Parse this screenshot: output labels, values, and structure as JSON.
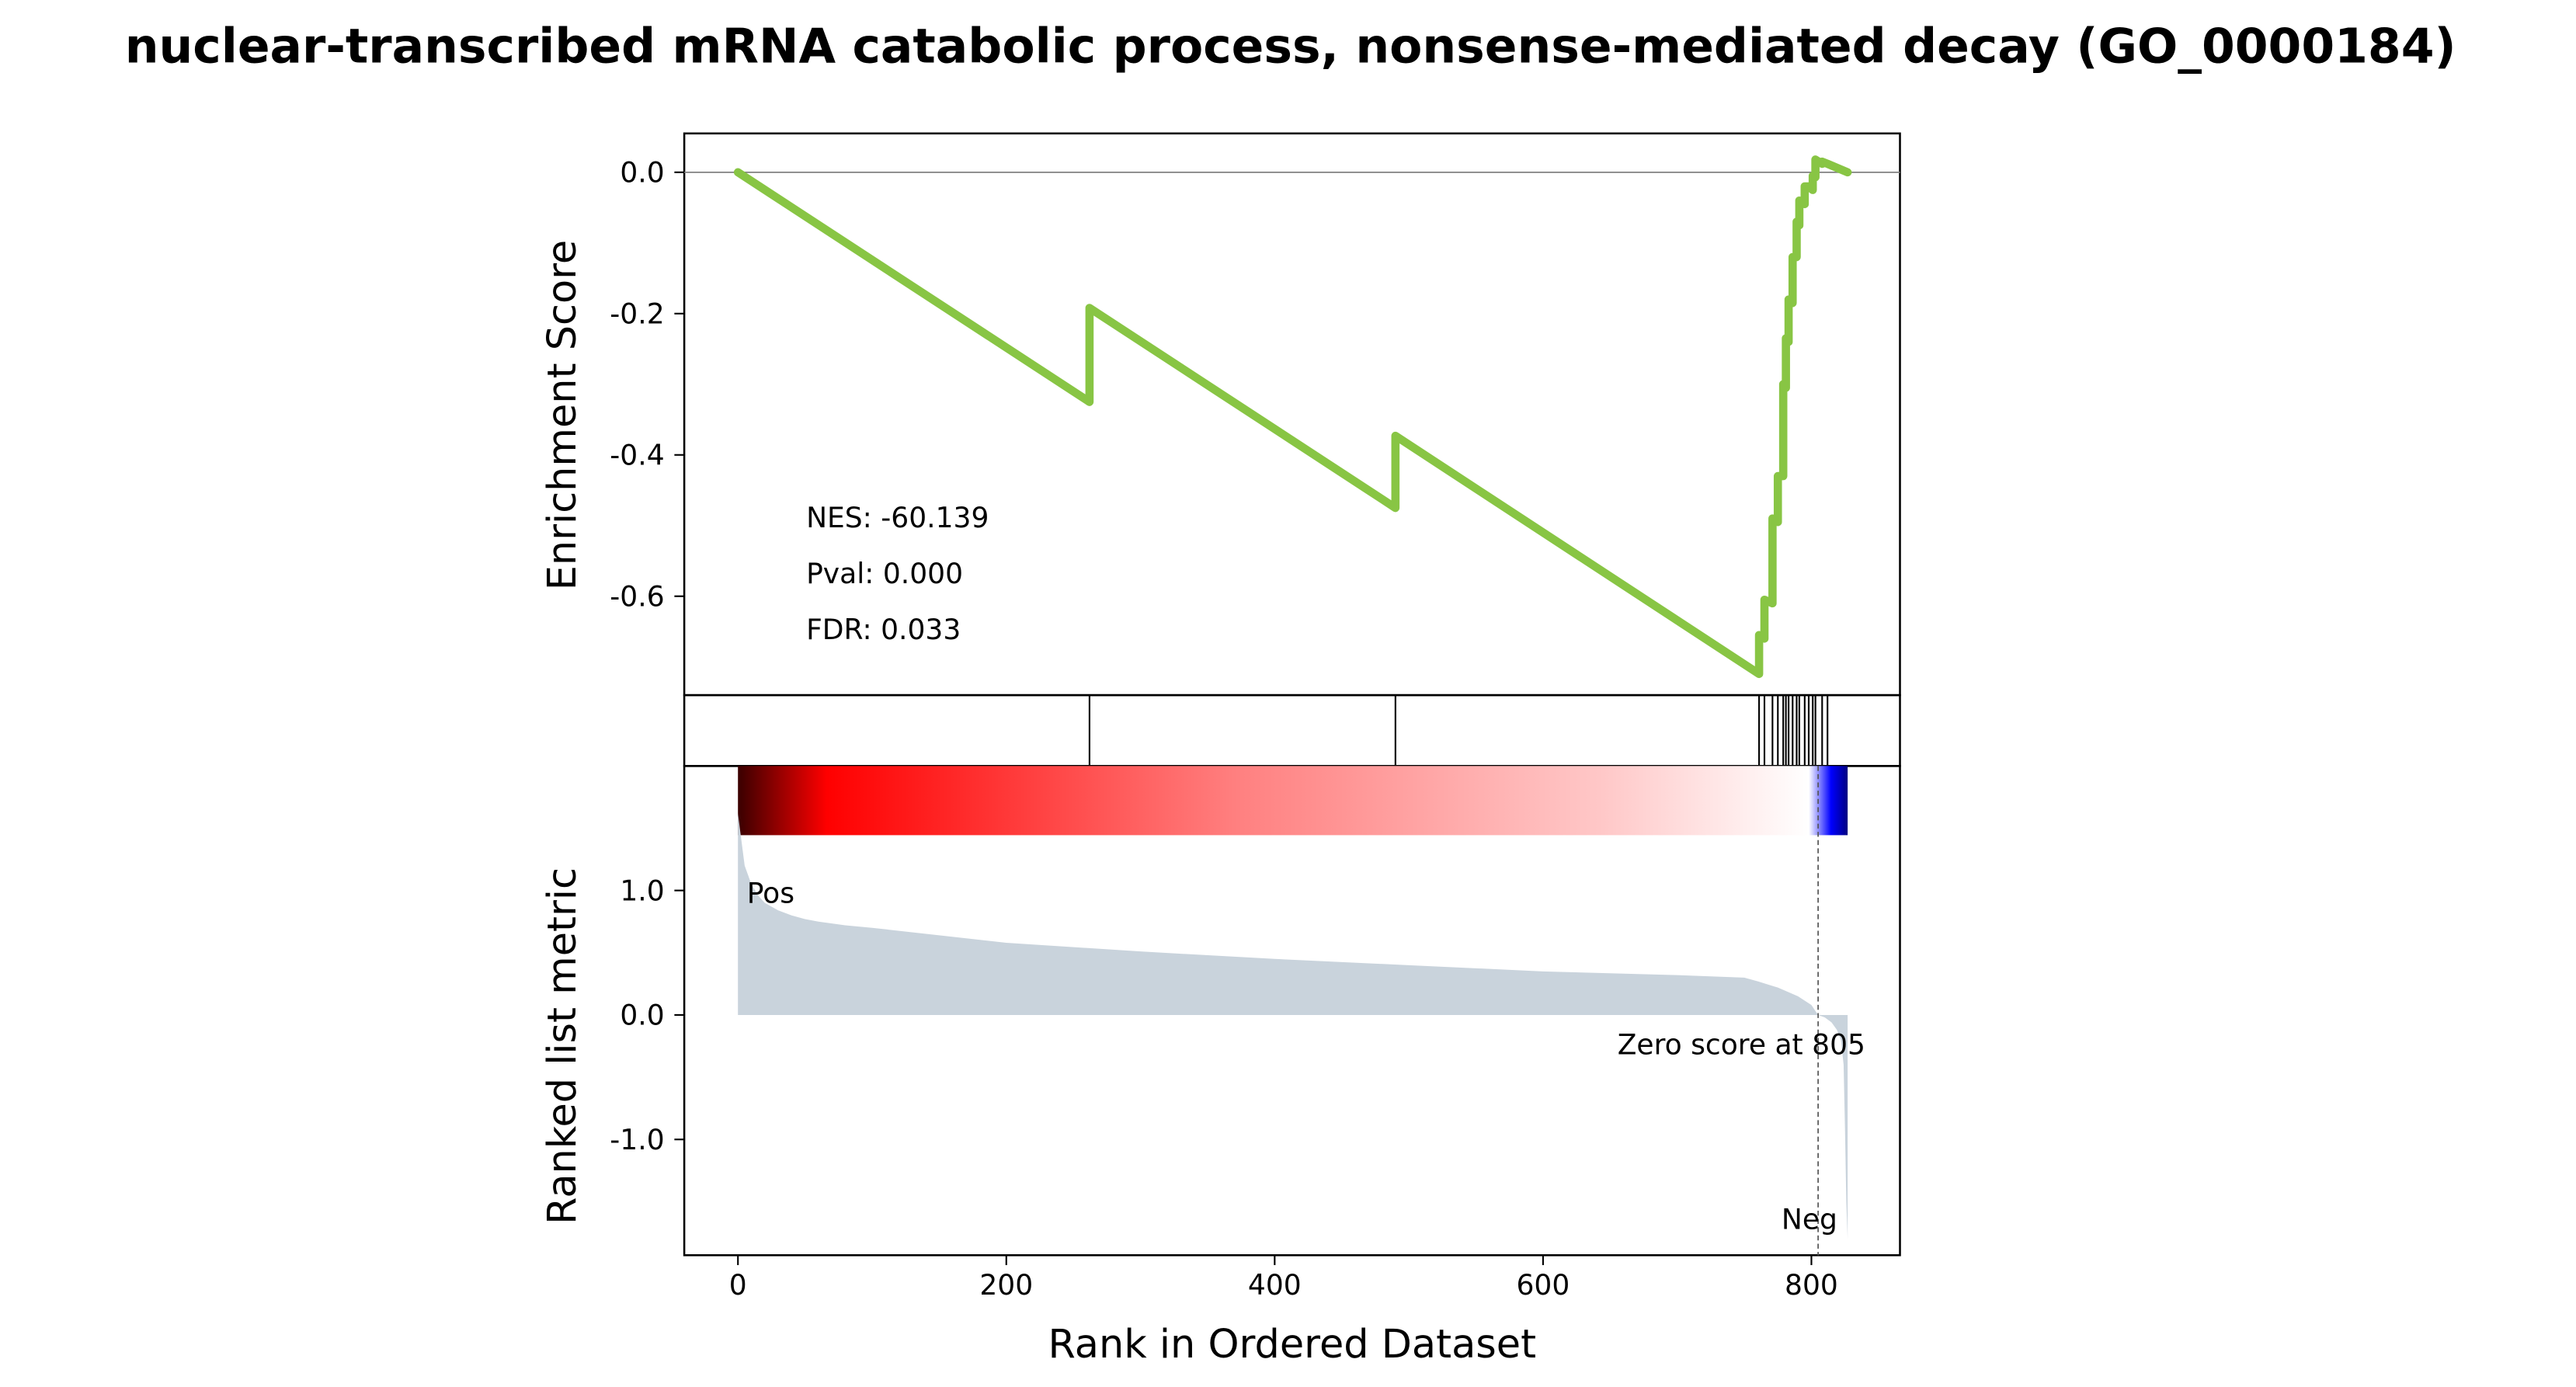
{
  "chart_data": {
    "type": "line",
    "title": "nuclear-transcribed mRNA catabolic process, nonsense-mediated decay (GO_0000184)",
    "xlabel": "Rank in Ordered Dataset",
    "xlim": [
      -40,
      866
    ],
    "x_ticks": [
      0,
      200,
      400,
      600,
      800
    ],
    "x_tick_labels": [
      "0",
      "200",
      "400",
      "600",
      "800"
    ],
    "enrichment": {
      "ylabel": "Enrichment Score",
      "ylim": [
        -0.74,
        0.055
      ],
      "y_ticks": [
        0.0,
        -0.2,
        -0.4,
        -0.6
      ],
      "y_tick_labels": [
        "0.0",
        "-0.2",
        "-0.4",
        "-0.6"
      ],
      "line_color": "#88c544",
      "zero_line": true,
      "stats": {
        "nes": "NES: -60.139",
        "pval": "Pval: 0.000",
        "fdr": "FDR: 0.033"
      },
      "series": [
        {
          "x": [
            0,
            262,
            262,
            490,
            490,
            761,
            761,
            765,
            765,
            771,
            771,
            775,
            775,
            779,
            779,
            781,
            781,
            783,
            783,
            786,
            786,
            789,
            789,
            791,
            791,
            795,
            795,
            798,
            798,
            801,
            801,
            803,
            803,
            808,
            808,
            812,
            812,
            827
          ],
          "y": [
            0.0,
            -0.325,
            -0.192,
            -0.475,
            -0.373,
            -0.71,
            -0.655,
            -0.66,
            -0.605,
            -0.61,
            -0.49,
            -0.495,
            -0.43,
            -0.43,
            -0.3,
            -0.305,
            -0.235,
            -0.24,
            -0.18,
            -0.185,
            -0.12,
            -0.12,
            -0.07,
            -0.075,
            -0.04,
            -0.045,
            -0.02,
            -0.02,
            -0.02,
            -0.025,
            -0.005,
            -0.007,
            0.018,
            0.012,
            0.015,
            0.012,
            0.012,
            0.0
          ]
        }
      ]
    },
    "hits": [
      262,
      490,
      761,
      765,
      771,
      775,
      779,
      781,
      783,
      786,
      789,
      791,
      795,
      798,
      801,
      803,
      808,
      812
    ],
    "ranked_metric": {
      "ylabel": "Ranked list metric",
      "ylim": [
        -1.93,
        2.0
      ],
      "y_ticks": [
        1.0,
        0.0,
        -1.0
      ],
      "y_tick_labels": [
        "1.0",
        "0.0",
        "-1.0"
      ],
      "fill_color": "#c9d3dc",
      "pos_label": "Pos",
      "neg_label": "Neg",
      "pos_color": "#ff0000",
      "neg_color": "#0000ff",
      "zero_score_label": "Zero score at 805",
      "zero_score_rank": 805,
      "x": [
        0,
        2,
        5,
        10,
        15,
        20,
        30,
        40,
        50,
        60,
        80,
        100,
        150,
        200,
        300,
        400,
        500,
        600,
        700,
        750,
        760,
        775,
        790,
        800,
        805,
        810,
        815,
        819,
        822,
        824,
        825,
        826,
        827
      ],
      "values": [
        1.62,
        1.45,
        1.2,
        1.05,
        0.96,
        0.9,
        0.84,
        0.8,
        0.77,
        0.75,
        0.72,
        0.7,
        0.64,
        0.58,
        0.51,
        0.45,
        0.4,
        0.35,
        0.32,
        0.3,
        0.27,
        0.22,
        0.15,
        0.08,
        0.0,
        -0.02,
        -0.06,
        -0.12,
        -0.2,
        -0.4,
        -0.9,
        -1.5,
        -1.8
      ]
    },
    "colorbar": {
      "stops": [
        "#3a0000",
        "#ff0000",
        "#ff8080",
        "#ffc8c8",
        "#ffffff",
        "#0000ff",
        "#000080"
      ]
    }
  }
}
